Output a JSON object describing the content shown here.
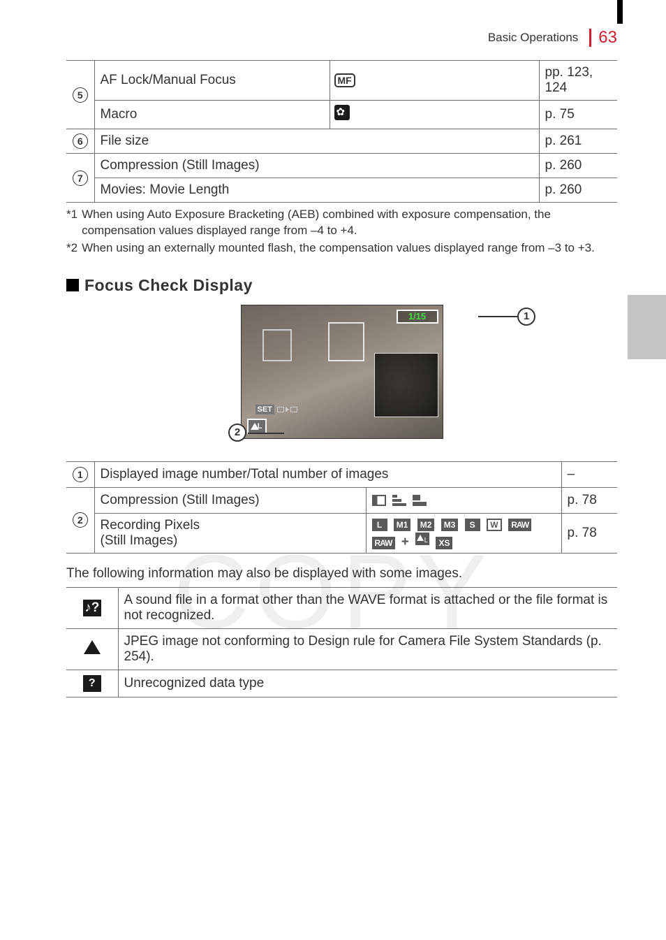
{
  "header": {
    "section": "Basic Operations",
    "page_number": "63"
  },
  "table1": {
    "rows": [
      {
        "num": "5",
        "rowspan": 2,
        "label": "AF Lock/Manual Focus",
        "icon": "mf",
        "ref": "pp. 123, 124"
      },
      {
        "label": "Macro",
        "icon": "flower",
        "ref": "p. 75"
      },
      {
        "num": "6",
        "rowspan": 1,
        "label": "File size",
        "span": true,
        "ref": "p. 261"
      },
      {
        "num": "7",
        "rowspan": 2,
        "label": "Compression (Still Images)",
        "span": true,
        "ref": "p. 260"
      },
      {
        "label": "Movies: Movie Length",
        "span": true,
        "ref": "p. 260"
      }
    ]
  },
  "footnotes": {
    "f1_mark": "*1",
    "f1": "When using Auto Exposure Bracketing (AEB) combined with exposure compensation, the compensation values displayed range from –4 to +4.",
    "f2_mark": "*2",
    "f2": "When using an externally mounted flash, the compensation values displayed range from –3 to +3."
  },
  "section2": {
    "title": "Focus Check Display"
  },
  "focus_check": {
    "counter": "1/15",
    "set_label": "SET",
    "callout1": "1",
    "callout2": "2"
  },
  "table2": {
    "row1": {
      "num": "1",
      "label": "Displayed image number/Total number of images",
      "ref": "–"
    },
    "row2a": {
      "num": "2",
      "label": "Compression (Still Images)",
      "ref": "p. 78"
    },
    "row2b": {
      "label_l1": "Recording Pixels",
      "label_l2": "(Still Images)",
      "ref": "p. 78",
      "chips1": [
        "L",
        "M1",
        "M2",
        "M3",
        "S"
      ],
      "chip_out": "W",
      "chip_raw": "RAW",
      "chip_raw2": "RAW",
      "plus": "+",
      "chip_xs": "XS"
    }
  },
  "note": "The following information may also be displayed with some images.",
  "table3": {
    "r1": "A sound file in a format other than the WAVE format is attached or the file format is not recognized.",
    "r2": "JPEG image not conforming to Design rule for Camera File System Standards (p. 254).",
    "r3": "Unrecognized data type"
  },
  "watermark": "COPY"
}
